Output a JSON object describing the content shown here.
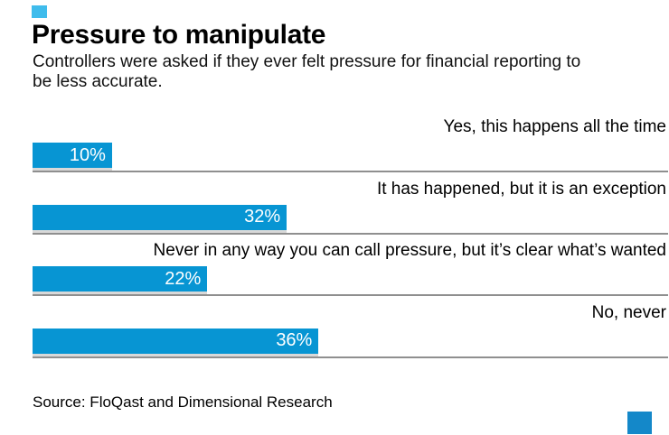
{
  "header": {
    "title": "Pressure to manipulate",
    "subtitle": "Controllers were asked if they ever felt pressure for financial reporting to be less accurate."
  },
  "chart_data": {
    "type": "bar",
    "orientation": "horizontal",
    "title": "Pressure to manipulate",
    "subtitle": "Controllers were asked if they ever felt pressure for financial reporting to be less accurate.",
    "categories": [
      "Yes, this happens all the time",
      "It has happened, but it is an exception",
      "Never in any way you can call pressure, but it’s clear what’s wanted",
      "No, never"
    ],
    "values": [
      10,
      32,
      22,
      36
    ],
    "value_labels": [
      "10%",
      "32%",
      "22%",
      "36%"
    ],
    "xlabel": "",
    "ylabel": "",
    "xlim": [
      0,
      80
    ],
    "grid": false,
    "legend": false,
    "bar_color": "#0795d3",
    "separator_color": "#8f8f8f",
    "value_label_color": "#ffffff",
    "label_position": "above-bar-right-aligned",
    "value_position": "inside-bar-right"
  },
  "footer": {
    "source": "Source: FloQast and Dimensional Research"
  },
  "decorations": {
    "top_left_square_color": "#3fbcec",
    "bottom_right_square_color": "#1488c9"
  }
}
